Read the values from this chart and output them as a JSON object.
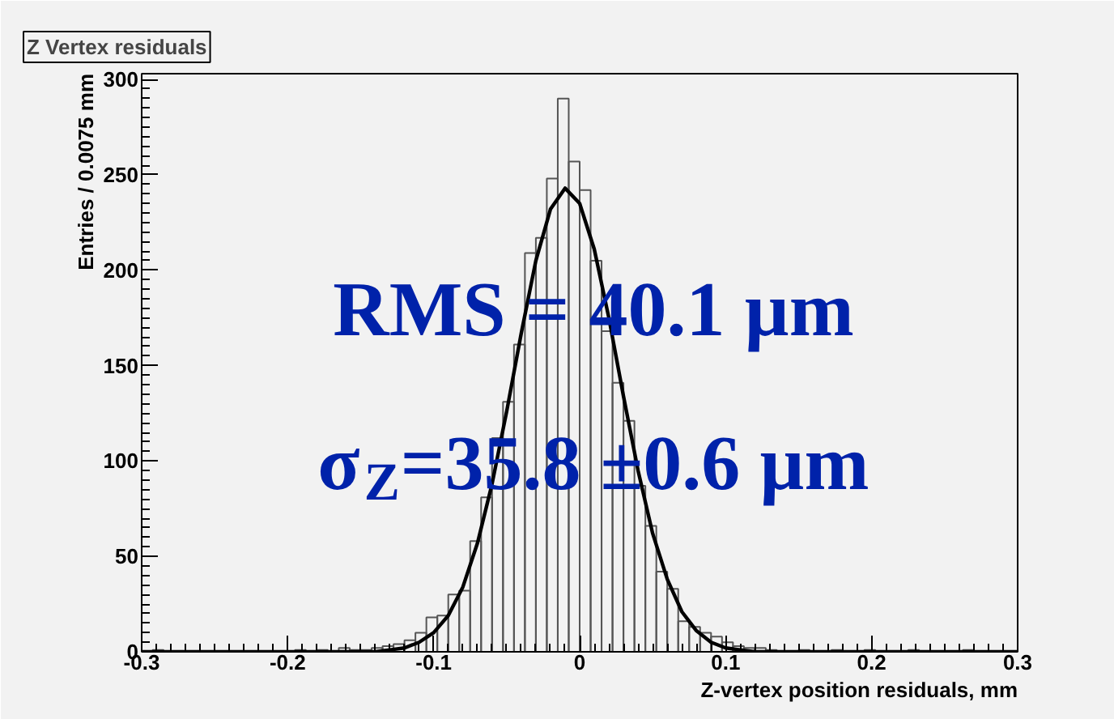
{
  "chart_data": {
    "type": "histogram",
    "title": "Z Vertex residuals",
    "xlabel": "Z-vertex position residuals, mm",
    "ylabel": "Entries / 0.0075 mm",
    "bins": [
      -0.3,
      -0.2925,
      -0.285,
      -0.2775,
      -0.27,
      -0.2625,
      -0.255,
      -0.2475,
      -0.24,
      -0.2325,
      -0.225,
      -0.2175,
      -0.21,
      -0.2025,
      -0.195,
      -0.1875,
      -0.18,
      -0.1725,
      -0.165,
      -0.1575,
      -0.15,
      -0.1425,
      -0.135,
      -0.1275,
      -0.12,
      -0.1125,
      -0.105,
      -0.0975,
      -0.09,
      -0.0825,
      -0.075,
      -0.0675,
      -0.06,
      -0.0525,
      -0.045,
      -0.0375,
      -0.03,
      -0.0225,
      -0.015,
      -0.0075,
      0,
      0.0075,
      0.015,
      0.0225,
      0.03,
      0.0375,
      0.045,
      0.0525,
      0.06,
      0.0675,
      0.075,
      0.0825,
      0.09,
      0.0975,
      0.105,
      0.1125,
      0.12,
      0.1275,
      0.135,
      0.1425,
      0.15,
      0.1575,
      0.165,
      0.1725,
      0.18,
      0.1875,
      0.195,
      0.2025,
      0.21,
      0.2175,
      0.225,
      0.2325,
      0.24,
      0.2475,
      0.255,
      0.2625,
      0.27,
      0.2775,
      0.285,
      0.2925,
      0.3
    ],
    "values": [
      0,
      1,
      0,
      0,
      0,
      0,
      0,
      0,
      0,
      0,
      0,
      0,
      0,
      0,
      1,
      0,
      1,
      0,
      2,
      1,
      1,
      2,
      3,
      4,
      6,
      10,
      18,
      19,
      30,
      32,
      58,
      81,
      112,
      131,
      161,
      209,
      217,
      248,
      290,
      257,
      242,
      205,
      168,
      141,
      121,
      87,
      66,
      42,
      33,
      16,
      13,
      10,
      8,
      5,
      3,
      2,
      2,
      1,
      0,
      0,
      1,
      0,
      0,
      1,
      0,
      0,
      1,
      0,
      0,
      0,
      1,
      0,
      0,
      0,
      0,
      1,
      0,
      0,
      0,
      0
    ],
    "color": "#555555",
    "series": [
      {
        "type": "line",
        "color": "#000000",
        "x": [
          -0.3,
          -0.15,
          -0.14,
          -0.13,
          -0.12,
          -0.11,
          -0.1,
          -0.09,
          -0.08,
          -0.07,
          -0.06,
          -0.05,
          -0.04,
          -0.03,
          -0.02,
          -0.01,
          0,
          0.01,
          0.02,
          0.03,
          0.04,
          0.05,
          0.06,
          0.07,
          0.08,
          0.09,
          0.1,
          0.11,
          0.12,
          0.13,
          0.3
        ],
        "values": [
          0,
          0,
          0,
          1,
          2,
          5,
          10,
          19,
          34,
          57,
          88,
          126,
          167,
          205,
          232,
          243,
          235,
          211,
          175,
          134,
          95,
          62,
          38,
          21,
          11,
          5,
          2,
          1,
          0,
          0,
          0
        ]
      }
    ],
    "xlim": [
      -0.3,
      0.3
    ],
    "ylim": [
      0,
      303
    ],
    "xticks": [
      -0.3,
      -0.2,
      -0.1,
      0,
      0.1,
      0.2,
      0.3
    ],
    "yticks": [
      0,
      50,
      100,
      150,
      200,
      250,
      300
    ],
    "annotations": [
      "RMS = 40.1 µm",
      "σ$_{Z}$=35.8 ±0.6 µm"
    ],
    "grid": false
  }
}
